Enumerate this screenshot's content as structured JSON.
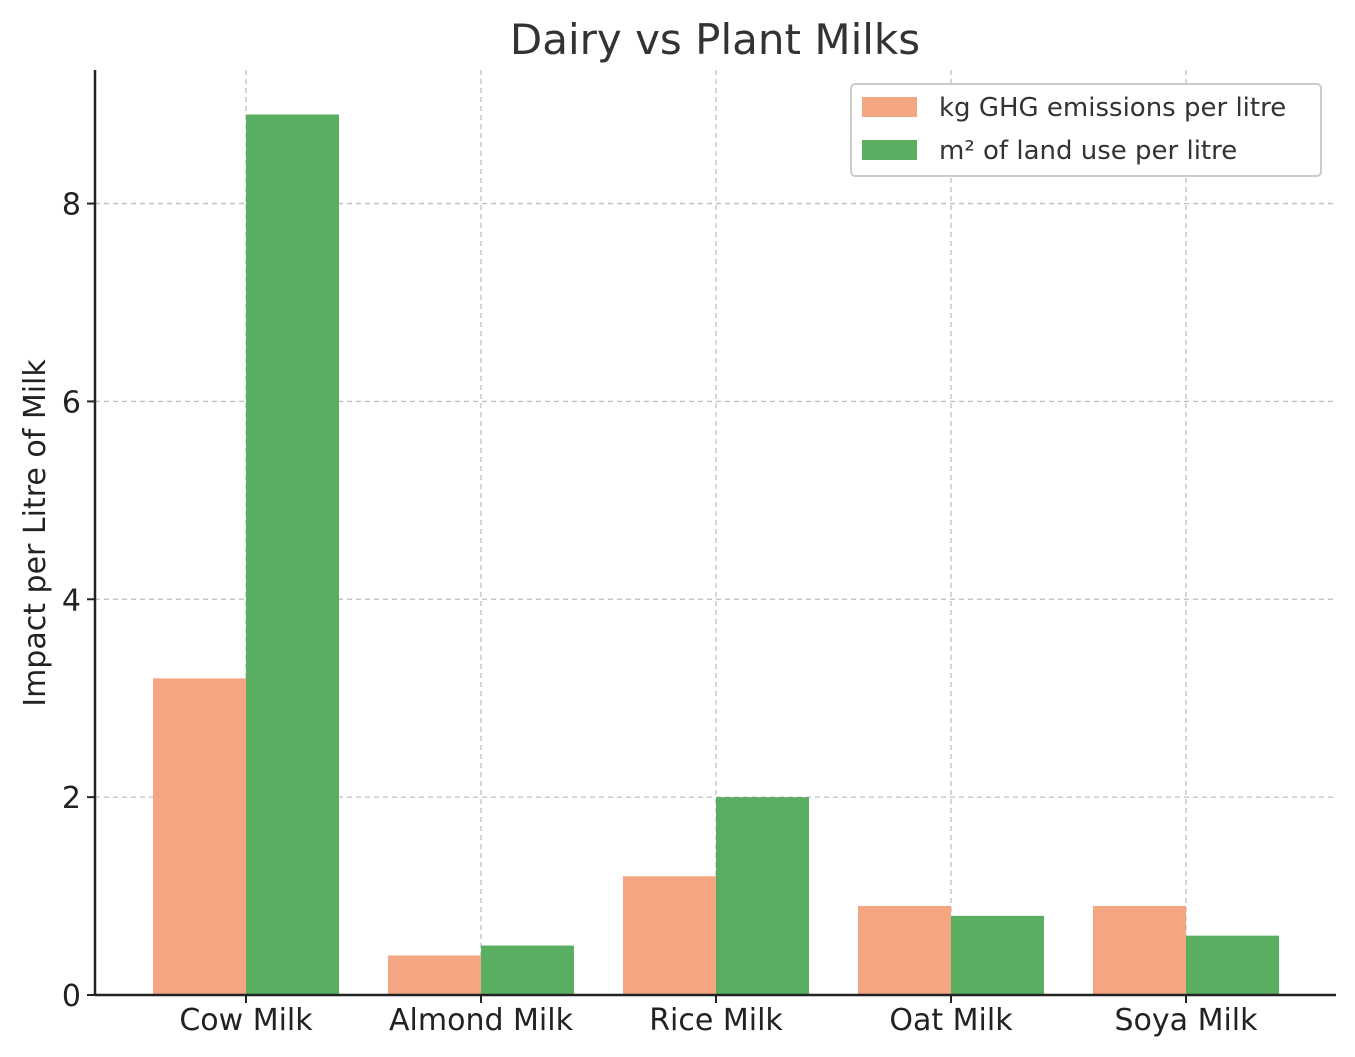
{
  "chart_data": {
    "type": "bar",
    "title": "Dairy vs Plant Milks",
    "xlabel": "",
    "ylabel": "Impact per Litre of Milk",
    "categories": [
      "Cow Milk",
      "Almond Milk",
      "Rice Milk",
      "Oat Milk",
      "Soya Milk"
    ],
    "series": [
      {
        "name": "kg GHG emissions per litre",
        "values": [
          3.2,
          0.4,
          1.2,
          0.9,
          0.9
        ],
        "color": "#f4a582"
      },
      {
        "name": "m² of land use per litre",
        "values": [
          8.9,
          0.5,
          2.0,
          0.8,
          0.6
        ],
        "color": "#5aae61"
      }
    ],
    "ylim": [
      0,
      9.35
    ],
    "yticks": [
      "0",
      "2",
      "4",
      "6",
      "8"
    ],
    "grid": true,
    "legend_position": "top-right"
  }
}
